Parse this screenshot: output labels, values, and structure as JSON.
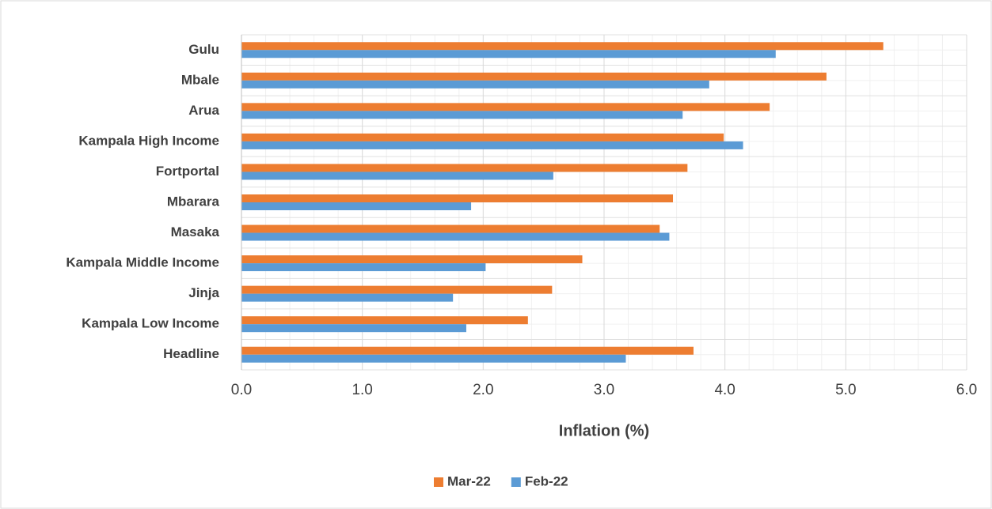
{
  "chart_data": {
    "type": "hbar",
    "x_label": "Inflation (%)",
    "categories": [
      "Gulu",
      "Mbale",
      "Arua",
      "Kampala High Income",
      "Fortportal",
      "Mbarara",
      "Masaka",
      "Kampala Middle Income",
      "Jinja",
      "Kampala Low Income",
      "Headline"
    ],
    "series": [
      {
        "name": "Mar-22",
        "color": "#ed7d31",
        "values": [
          5.31,
          4.84,
          4.37,
          3.99,
          3.69,
          3.57,
          3.46,
          2.82,
          2.57,
          2.37,
          3.74
        ]
      },
      {
        "name": "Feb-22",
        "color": "#5b9bd5",
        "values": [
          4.42,
          3.87,
          3.65,
          4.15,
          2.58,
          1.9,
          3.54,
          2.02,
          1.75,
          1.86,
          3.18
        ]
      }
    ],
    "xlim": [
      0,
      6
    ],
    "xticks": [
      {
        "value": 0,
        "label": "0.0"
      },
      {
        "value": 1,
        "label": "1.0"
      },
      {
        "value": 2,
        "label": "2.0"
      },
      {
        "value": 3,
        "label": "3.0"
      },
      {
        "value": 4,
        "label": "4.0"
      },
      {
        "value": 5,
        "label": "5.0"
      },
      {
        "value": 6,
        "label": "6.0"
      }
    ],
    "grid": true,
    "legend": "bottom"
  }
}
